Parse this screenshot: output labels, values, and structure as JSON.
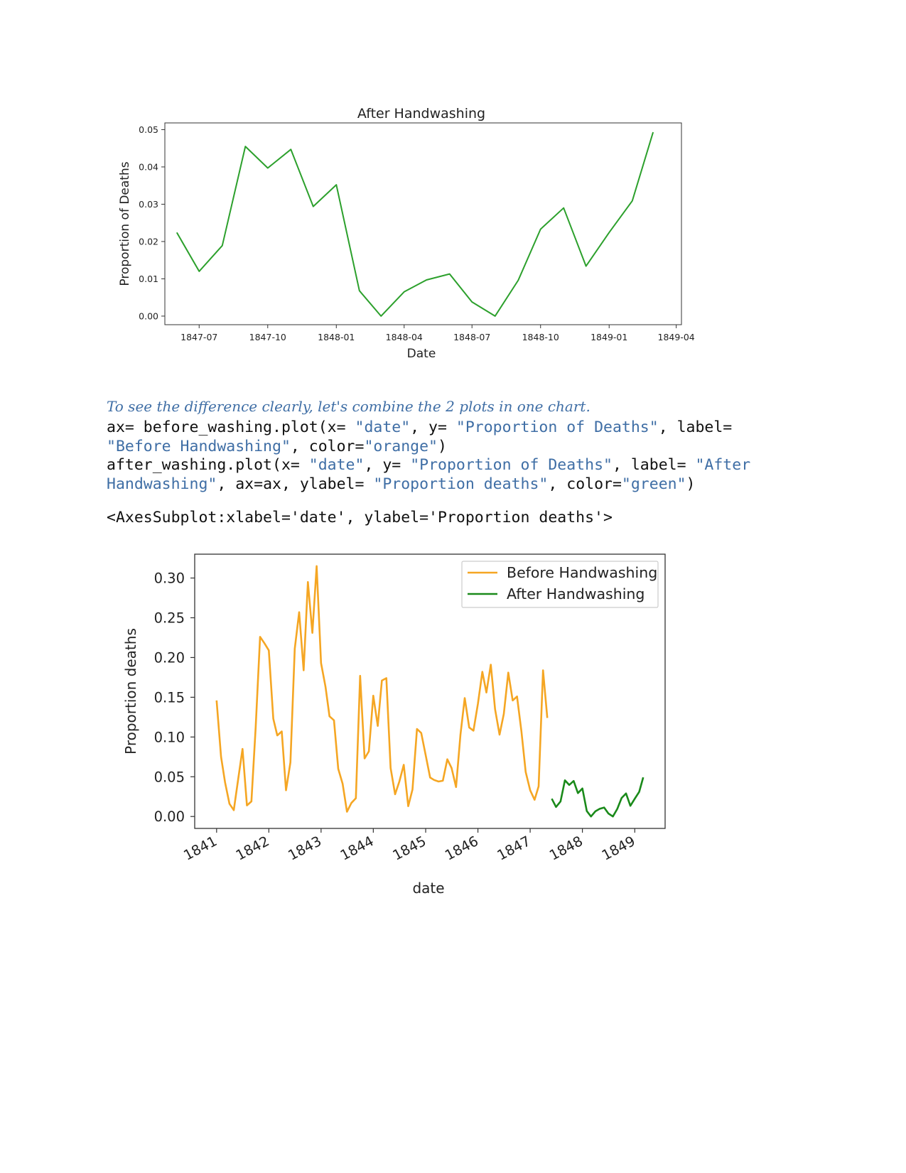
{
  "chart_data": [
    {
      "type": "line",
      "title": "After Handwashing",
      "xlabel": "Date",
      "ylabel": "Proportion of Deaths",
      "x_ticks": [
        "1847-07",
        "1847-10",
        "1848-01",
        "1848-04",
        "1848-07",
        "1848-10",
        "1849-01",
        "1849-04"
      ],
      "y_ticks": [
        "0.00",
        "0.01",
        "0.02",
        "0.03",
        "0.04",
        "0.05"
      ],
      "ylim": [
        -0.0023,
        0.0518
      ],
      "xlim": [
        "1847-05-16",
        "1849-04-08"
      ],
      "grid": false,
      "series": [
        {
          "color": "#2ca02c",
          "x": [
            "1847-06-01",
            "1847-07-01",
            "1847-08-01",
            "1847-09-01",
            "1847-10-01",
            "1847-11-01",
            "1847-12-01",
            "1848-01-01",
            "1848-02-01",
            "1848-03-01",
            "1848-04-01",
            "1848-05-01",
            "1848-06-01",
            "1848-07-01",
            "1848-08-01",
            "1848-09-01",
            "1848-10-01",
            "1848-11-01",
            "1848-12-01",
            "1849-01-01",
            "1849-02-01",
            "1849-03-01"
          ],
          "values": [
            0.0224,
            0.012,
            0.0189,
            0.0455,
            0.0397,
            0.0447,
            0.0294,
            0.0352,
            0.0068,
            0.0,
            0.0065,
            0.0097,
            0.0113,
            0.0038,
            0.0,
            0.0096,
            0.0233,
            0.029,
            0.0134,
            0.0224,
            0.0309,
            0.0493
          ]
        }
      ]
    },
    {
      "type": "line",
      "title": "",
      "xlabel": "date",
      "ylabel": "Proportion deaths",
      "x_ticks": [
        "1841",
        "1842",
        "1843",
        "1844",
        "1845",
        "1846",
        "1847",
        "1848",
        "1849"
      ],
      "y_ticks": [
        "0.00",
        "0.05",
        "0.10",
        "0.15",
        "0.20",
        "0.25",
        "0.30"
      ],
      "ylim": [
        -0.015,
        0.33
      ],
      "xlim": [
        "1840-08-01",
        "1849-08-01"
      ],
      "legend": "top-right",
      "grid": false,
      "series": [
        {
          "name": "Before Handwashing",
          "color": "#f5a623",
          "x": [
            "1841-01",
            "1841-02",
            "1841-03",
            "1841-04",
            "1841-05",
            "1841-06",
            "1841-07",
            "1841-08",
            "1841-09",
            "1841-10",
            "1841-11",
            "1841-12",
            "1842-01",
            "1842-02",
            "1842-03",
            "1842-04",
            "1842-05",
            "1842-06",
            "1842-07",
            "1842-08",
            "1842-09",
            "1842-10",
            "1842-11",
            "1842-12",
            "1843-01",
            "1843-02",
            "1843-03",
            "1843-04",
            "1843-05",
            "1843-06",
            "1843-07",
            "1843-08",
            "1843-09",
            "1843-10",
            "1843-11",
            "1843-12",
            "1844-01",
            "1844-02",
            "1844-03",
            "1844-04",
            "1844-05",
            "1844-06",
            "1844-07",
            "1844-08",
            "1844-09",
            "1844-10",
            "1844-11",
            "1844-12",
            "1845-01",
            "1845-02",
            "1845-03",
            "1845-04",
            "1845-05",
            "1845-06",
            "1845-07",
            "1845-08",
            "1845-09",
            "1845-10",
            "1845-11",
            "1845-12",
            "1846-01",
            "1846-02",
            "1846-03",
            "1846-04",
            "1846-05",
            "1846-06",
            "1846-07",
            "1846-08",
            "1846-09",
            "1846-10",
            "1846-11",
            "1846-12",
            "1847-01",
            "1847-02",
            "1847-03",
            "1847-04",
            "1847-05"
          ],
          "values": [
            0.146,
            0.075,
            0.043,
            0.016,
            0.008,
            0.047,
            0.085,
            0.014,
            0.019,
            0.112,
            0.226,
            0.218,
            0.209,
            0.123,
            0.102,
            0.107,
            0.033,
            0.068,
            0.211,
            0.257,
            0.184,
            0.295,
            0.231,
            0.315,
            0.193,
            0.163,
            0.126,
            0.121,
            0.06,
            0.041,
            0.006,
            0.017,
            0.023,
            0.177,
            0.073,
            0.082,
            0.152,
            0.114,
            0.171,
            0.174,
            0.061,
            0.028,
            0.044,
            0.065,
            0.013,
            0.034,
            0.11,
            0.105,
            0.077,
            0.049,
            0.046,
            0.044,
            0.045,
            0.072,
            0.061,
            0.037,
            0.103,
            0.149,
            0.112,
            0.108,
            0.142,
            0.182,
            0.156,
            0.191,
            0.135,
            0.103,
            0.129,
            0.181,
            0.146,
            0.151,
            0.107,
            0.056,
            0.033,
            0.021,
            0.038,
            0.184,
            0.124
          ]
        },
        {
          "name": "After Handwashing",
          "color": "#1a8a1a",
          "x": [
            "1847-06",
            "1847-07",
            "1847-08",
            "1847-09",
            "1847-10",
            "1847-11",
            "1847-12",
            "1848-01",
            "1848-02",
            "1848-03",
            "1848-04",
            "1848-05",
            "1848-06",
            "1848-07",
            "1848-08",
            "1848-09",
            "1848-10",
            "1848-11",
            "1848-12",
            "1849-01",
            "1849-02",
            "1849-03"
          ],
          "values": [
            0.0224,
            0.012,
            0.0189,
            0.0455,
            0.0397,
            0.0447,
            0.0294,
            0.0352,
            0.0068,
            0.0,
            0.0065,
            0.0097,
            0.0113,
            0.0038,
            0.0,
            0.0096,
            0.0233,
            0.029,
            0.0134,
            0.0224,
            0.0309,
            0.0493
          ]
        }
      ]
    }
  ],
  "text": {
    "note": "To see the difference clearly, let's combine the 2 plots in one chart.",
    "code": {
      "l1a": "ax= before_washing.plot(x= ",
      "l1b": "\"date\"",
      "l1c": ", y= ",
      "l1d": "\"Proportion of Deaths\"",
      "l1e": ", label=",
      "l2a": "\"Before Handwashing\"",
      "l2b": ", color=",
      "l2c": "\"orange\"",
      "l2d": ")",
      "l3a": "after_washing.plot(x= ",
      "l3b": "\"date\"",
      "l3c": ", y= ",
      "l3d": "\"Proportion of Deaths\"",
      "l3e": ", label= ",
      "l3f": "\"After",
      "l4a": "Handwashing\"",
      "l4b": ", ax=ax, ylabel= ",
      "l4c": "\"Proportion deaths\"",
      "l4d": ", color=",
      "l4e": "\"green\"",
      "l4f": ")"
    },
    "output": "<AxesSubplot:xlabel='date', ylabel='Proportion deaths'>"
  }
}
